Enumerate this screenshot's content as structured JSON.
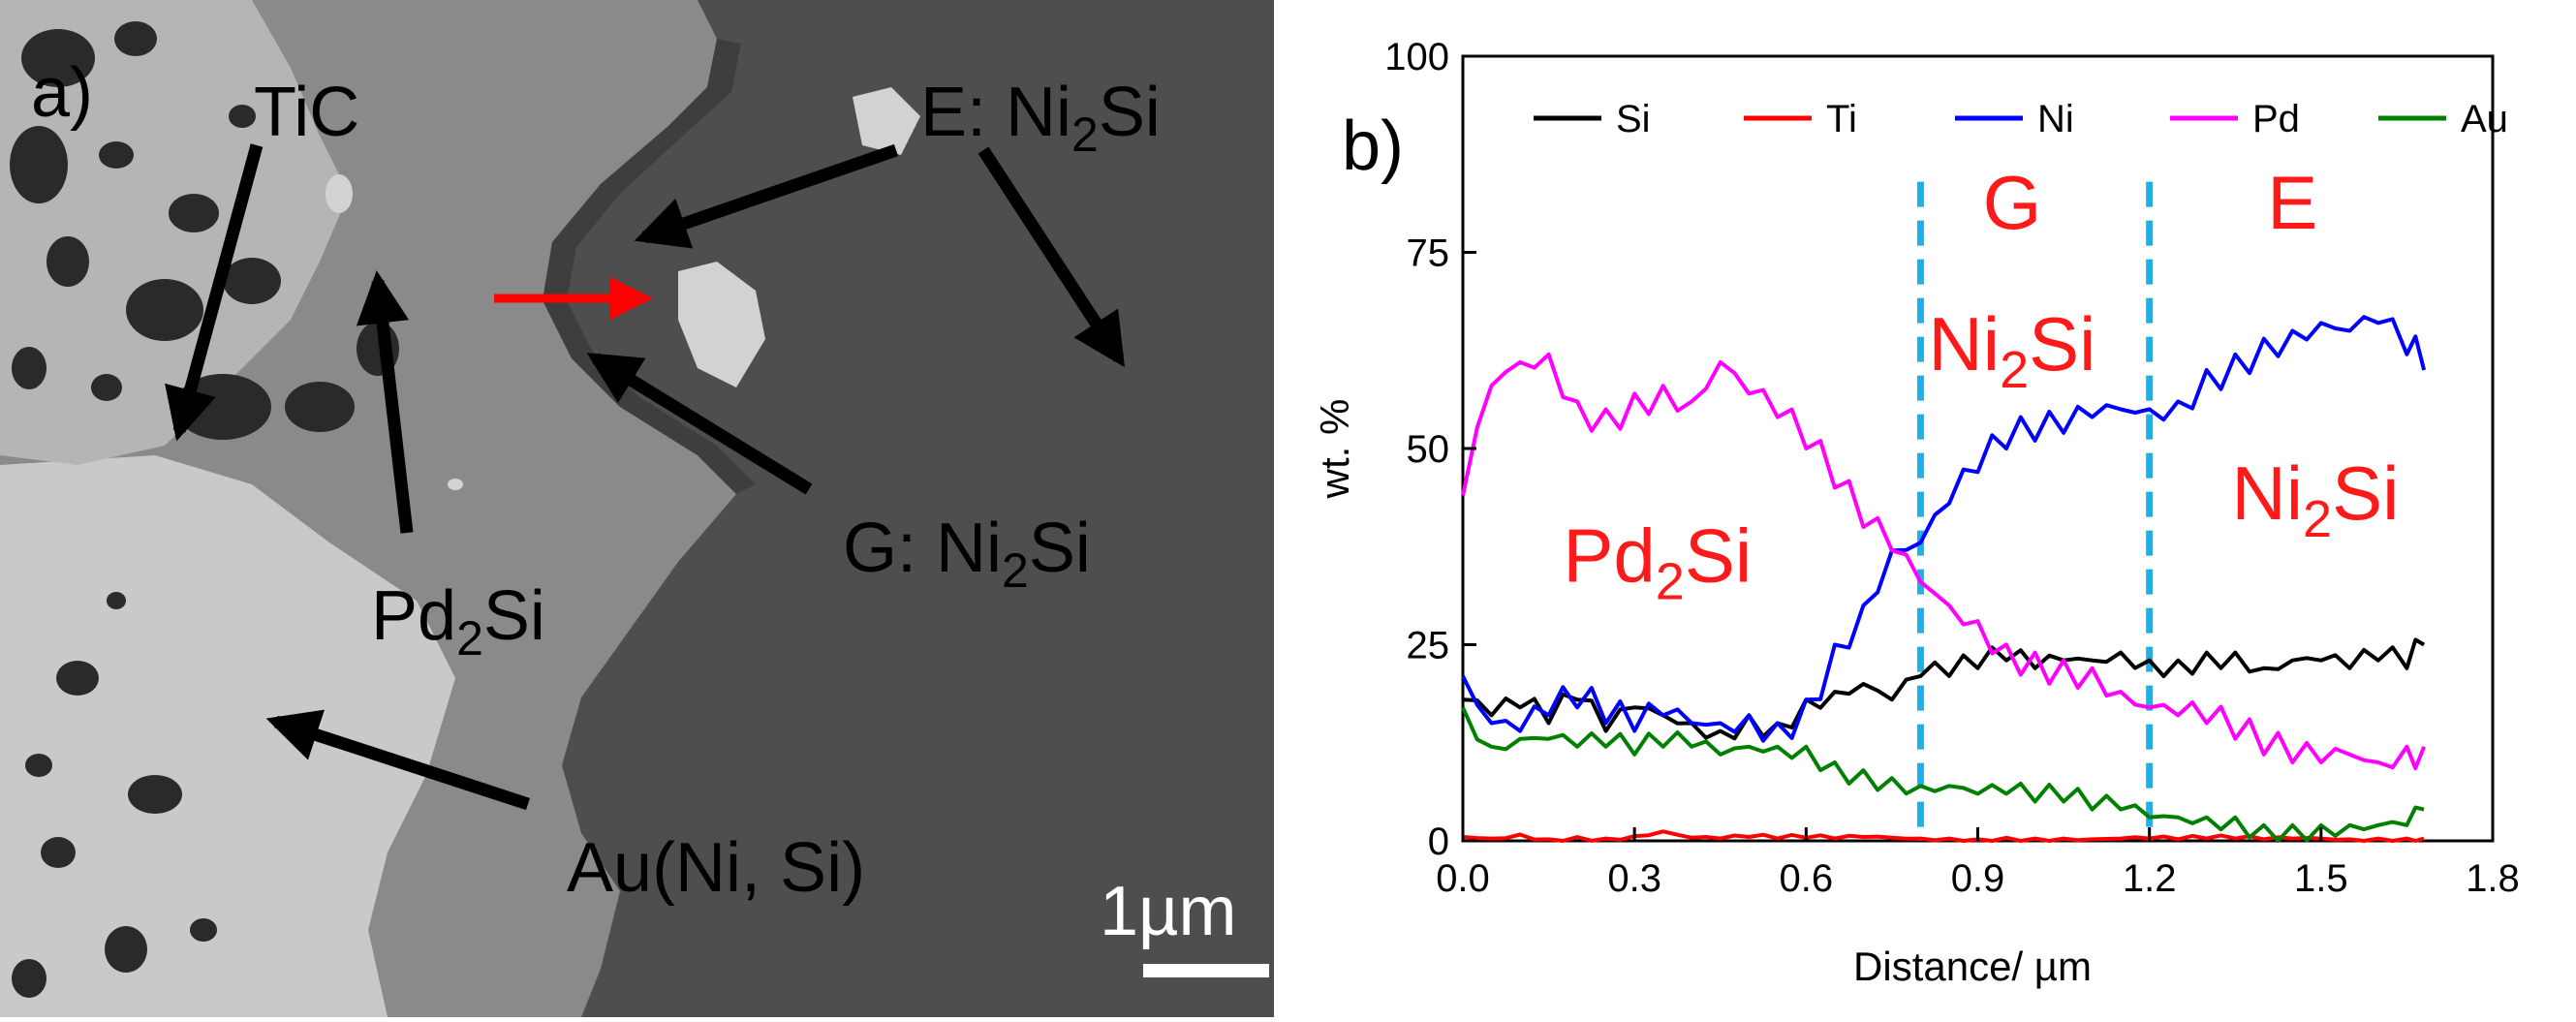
{
  "panel_a": {
    "label": "a)",
    "annotations": {
      "tic": "TiC",
      "e_phase": [
        "E: Ni",
        "2",
        "Si"
      ],
      "g_phase": [
        "G: Ni",
        "2",
        "Si"
      ],
      "pd2si": [
        "Pd",
        "2",
        "Si"
      ],
      "au": "Au(Ni, Si)"
    },
    "scale_bar": "1µm",
    "colors": {
      "arrow": "#000000",
      "marker_arrow": "#ff0000",
      "text": "#000000"
    }
  },
  "chart_data": {
    "type": "line",
    "panel_label": "b)",
    "title": "",
    "xlabel": "Distance/ µm",
    "ylabel": "wt. %",
    "xlim": [
      0.0,
      1.8
    ],
    "ylim": [
      0,
      100
    ],
    "xticks": [
      "0.0",
      "0.3",
      "0.6",
      "0.9",
      "1.2",
      "1.5",
      "1.8"
    ],
    "xtick_values": [
      0.0,
      0.3,
      0.6,
      0.9,
      1.2,
      1.5,
      1.8
    ],
    "yticks": [
      "0",
      "25",
      "50",
      "75",
      "100"
    ],
    "ytick_values": [
      0,
      25,
      50,
      75,
      100
    ],
    "legend": {
      "position": "top",
      "entries": [
        "Si",
        "Ti",
        "Ni",
        "Pd",
        "Au"
      ]
    },
    "boundaries": [
      0.8,
      1.2
    ],
    "boundary_color": "#1ab2e8",
    "region_labels": [
      {
        "text": "G",
        "x": 0.96,
        "y": 78
      },
      {
        "text": [
          "Ni",
          "2",
          "Si"
        ],
        "x": 0.96,
        "y": 60
      },
      {
        "text": "E",
        "x": 1.45,
        "y": 78
      },
      {
        "text": [
          "Ni",
          "2",
          "Si"
        ],
        "x": 1.49,
        "y": 41
      },
      {
        "text": [
          "Pd",
          "2",
          "Si"
        ],
        "x": 0.34,
        "y": 33
      }
    ],
    "region_label_color": "#ff1a1a",
    "x": [
      0.0,
      0.05,
      0.1,
      0.15,
      0.2,
      0.25,
      0.3,
      0.35,
      0.4,
      0.45,
      0.5,
      0.55,
      0.6,
      0.65,
      0.7,
      0.75,
      0.8,
      0.85,
      0.9,
      0.95,
      1.0,
      1.05,
      1.1,
      1.15,
      1.2,
      1.25,
      1.3,
      1.35,
      1.4,
      1.45,
      1.5,
      1.55,
      1.6,
      1.65,
      1.68
    ],
    "series": [
      {
        "name": "Si",
        "color": "#000000",
        "values": [
          18,
          16,
          17,
          15,
          18,
          14,
          17,
          16,
          15,
          14,
          16,
          15,
          18,
          19,
          20,
          18,
          21,
          21,
          22,
          23,
          22,
          23,
          23,
          24,
          23,
          23,
          24,
          24,
          22,
          23,
          23,
          22,
          23,
          22,
          25
        ]
      },
      {
        "name": "Ti",
        "color": "#ff0000",
        "values": [
          0.5,
          0.3,
          0.8,
          0.2,
          0.5,
          0.3,
          0.6,
          1.2,
          0.4,
          0.3,
          0.5,
          0.3,
          0.4,
          0.3,
          0.5,
          0.4,
          0.3,
          0.3,
          0.2,
          0.4,
          0.3,
          0.3,
          0.2,
          0.3,
          0.3,
          0.2,
          0.3,
          0.3,
          0.2,
          0.3,
          0.3,
          0.2,
          0.3,
          0.3,
          0.3
        ]
      },
      {
        "name": "Ni",
        "color": "#0000ff",
        "values": [
          21,
          15,
          14,
          16,
          17,
          15,
          14,
          16,
          15,
          15,
          16,
          15,
          18,
          25,
          30,
          37,
          38,
          43,
          47,
          50,
          51,
          52,
          54,
          55,
          55,
          56,
          60,
          62,
          64,
          65,
          66,
          65,
          66,
          62,
          60
        ]
      },
      {
        "name": "Pd",
        "color": "#ff00ff",
        "values": [
          44,
          58,
          61,
          62,
          56,
          55,
          57,
          58,
          56,
          61,
          57,
          54,
          50,
          45,
          40,
          37,
          33,
          30,
          28,
          25,
          24,
          23,
          22,
          19,
          17,
          16,
          15,
          13,
          11,
          10,
          10,
          11,
          10,
          12,
          12
        ]
      },
      {
        "name": "Au",
        "color": "#008000",
        "values": [
          17,
          12,
          13,
          13,
          12,
          12,
          11,
          12,
          12,
          11,
          12,
          12,
          12,
          10,
          9,
          8,
          7,
          7,
          6,
          6,
          5,
          5,
          4,
          4,
          3,
          3,
          3,
          3,
          2,
          2,
          2,
          2,
          2,
          2,
          4
        ]
      }
    ]
  }
}
